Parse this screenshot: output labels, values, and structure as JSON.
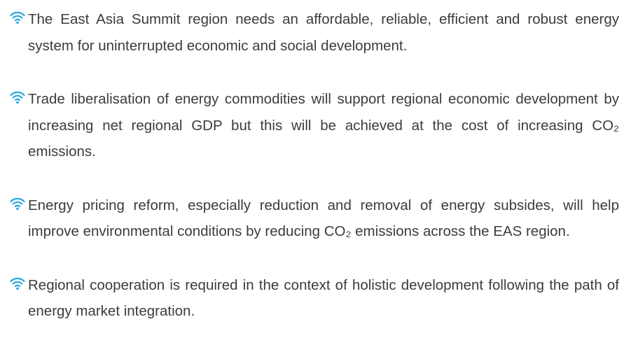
{
  "bullets": [
    "The East Asia Summit region needs an affordable, reliable, efficient and robust energy system for uninterrupted economic and social development.",
    "Trade liberalisation of energy commodities will support regional economic development by increasing net regional GDP but this will be achieved at the cost of increasing CO₂ emissions.",
    "Energy pricing reform, especially reduction and removal of energy subsides, will help improve environmental conditions by reducing CO₂ emissions across the EAS region.",
    "Regional cooperation is required in the context of holistic development following the path of energy market integration."
  ]
}
